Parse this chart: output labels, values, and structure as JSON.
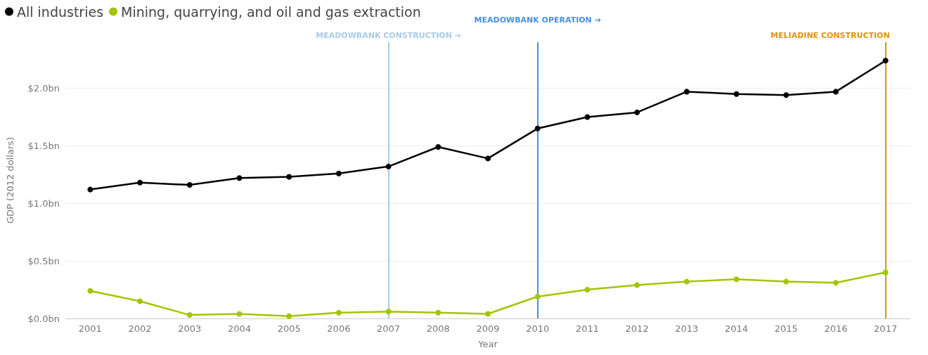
{
  "chart_data": {
    "type": "line",
    "xlabel": "Year",
    "ylabel": "GDP (2012 dollars)",
    "categories": [
      "2001",
      "2002",
      "2003",
      "2004",
      "2005",
      "2006",
      "2007",
      "2008",
      "2009",
      "2010",
      "2011",
      "2012",
      "2013",
      "2014",
      "2015",
      "2016",
      "2017"
    ],
    "series": [
      {
        "name": "All industries",
        "color": "#000000",
        "values": [
          1.12,
          1.18,
          1.16,
          1.22,
          1.23,
          1.26,
          1.32,
          1.49,
          1.39,
          1.65,
          1.75,
          1.79,
          1.97,
          1.95,
          1.94,
          1.97,
          2.24
        ]
      },
      {
        "name": "Mining, quarrying, and oil and gas extraction",
        "color": "#a5c400",
        "values": [
          0.24,
          0.15,
          0.03,
          0.04,
          0.02,
          0.05,
          0.06,
          0.05,
          0.04,
          0.19,
          0.25,
          0.29,
          0.32,
          0.34,
          0.32,
          0.31,
          0.4
        ]
      }
    ],
    "ylim": [
      0,
      2.4
    ],
    "yticks": [
      {
        "value": 0,
        "label": "$0.0bn"
      },
      {
        "value": 0.5,
        "label": "$0.5bn"
      },
      {
        "value": 1,
        "label": "$1.0bn"
      },
      {
        "value": 1.5,
        "label": "$1.5bn"
      },
      {
        "value": 2,
        "label": "$2.0bn"
      }
    ],
    "ref_lines": [
      {
        "axis": "x",
        "value": "2007",
        "label": "MEADOWBANK CONSTRUCTION ➔",
        "color": "#a7cbe8"
      },
      {
        "axis": "x",
        "value": "2010",
        "label": "MEADOWBANK OPERATION ➔",
        "color": "#4a90d9"
      },
      {
        "axis": "x",
        "value": "2017",
        "label": "MELIADINE CONSTRUCTION",
        "color": "#e0920e"
      }
    ],
    "grid": "y",
    "legend": "top left",
    "marker": "circle",
    "line_style": "solid"
  }
}
